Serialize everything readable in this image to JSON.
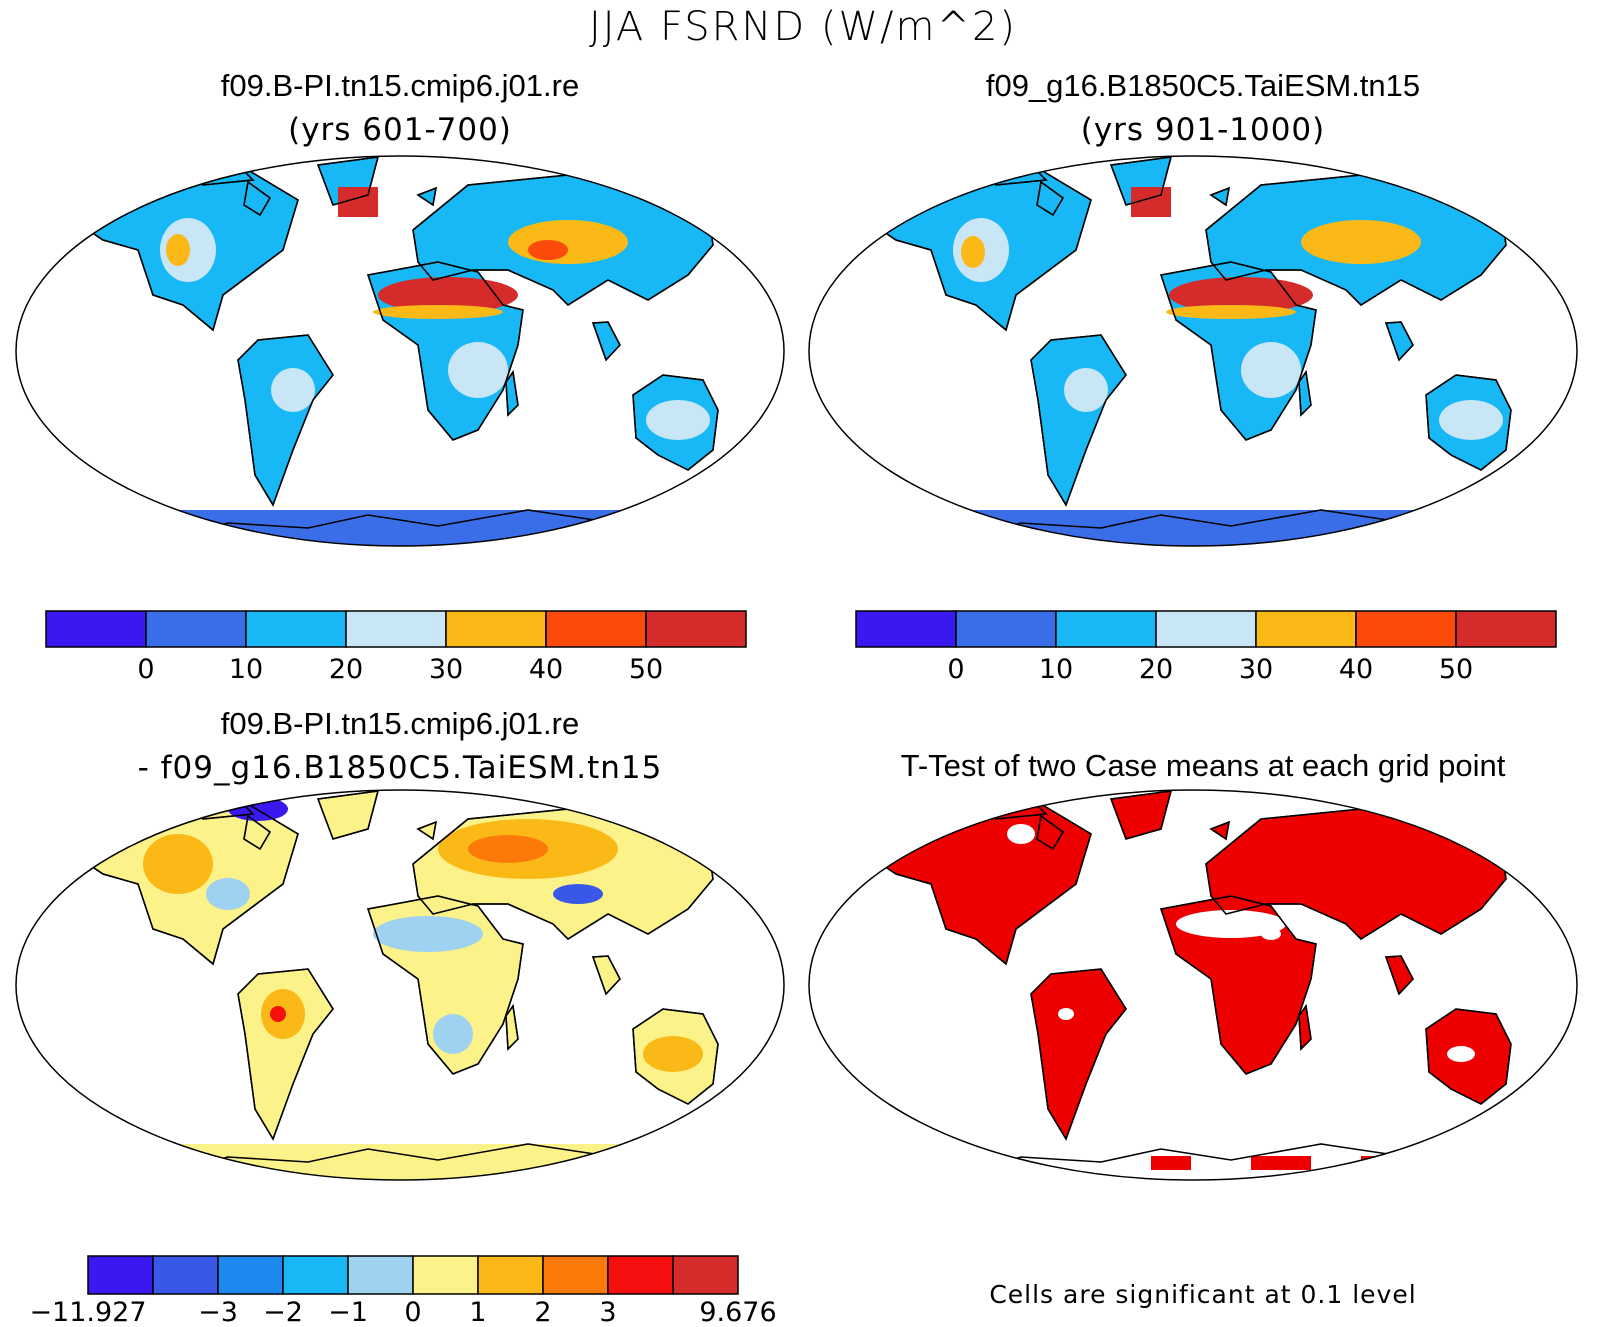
{
  "figure": {
    "title": "JJA FSRND (W/m^2)"
  },
  "panels": {
    "case1": {
      "title": "f09.B-PI.tn15.cmip6.j01.re",
      "subtitle": "(yrs 601-700)"
    },
    "case2": {
      "title": "f09_g16.B1850C5.TaiESM.tn15",
      "subtitle": "(yrs 901-1000)"
    },
    "diff": {
      "title": "f09.B-PI.tn15.cmip6.j01.re",
      "subtitle": "- f09_g16.B1850C5.TaiESM.tn15"
    },
    "ttest": {
      "title": "T-Test of two Case means at each grid point",
      "note": "Cells are significant at 0.1 level"
    }
  },
  "colorbars": {
    "case": {
      "colors": [
        "#3a18f0",
        "#3a6ee8",
        "#17b8f5",
        "#c8e6f5",
        "#fbb917",
        "#fb4a0a",
        "#d52b2b"
      ],
      "labels": [
        "0",
        "10",
        "20",
        "30",
        "40",
        "50"
      ]
    },
    "diff": {
      "colors": [
        "#3a18f0",
        "#3a58e8",
        "#1e88f0",
        "#17b8f5",
        "#9fd1f0",
        "#fbf28a",
        "#fbb917",
        "#fb7a0a",
        "#f50f0f",
        "#d52b2b"
      ],
      "labels": [
        "-11.927",
        "-3",
        "-2",
        "-1",
        "0",
        "1",
        "2",
        "3",
        "9.676"
      ]
    }
  },
  "colors": {
    "significance": "#ee0000",
    "ocean": "#ffffff",
    "outline": "#000000"
  }
}
